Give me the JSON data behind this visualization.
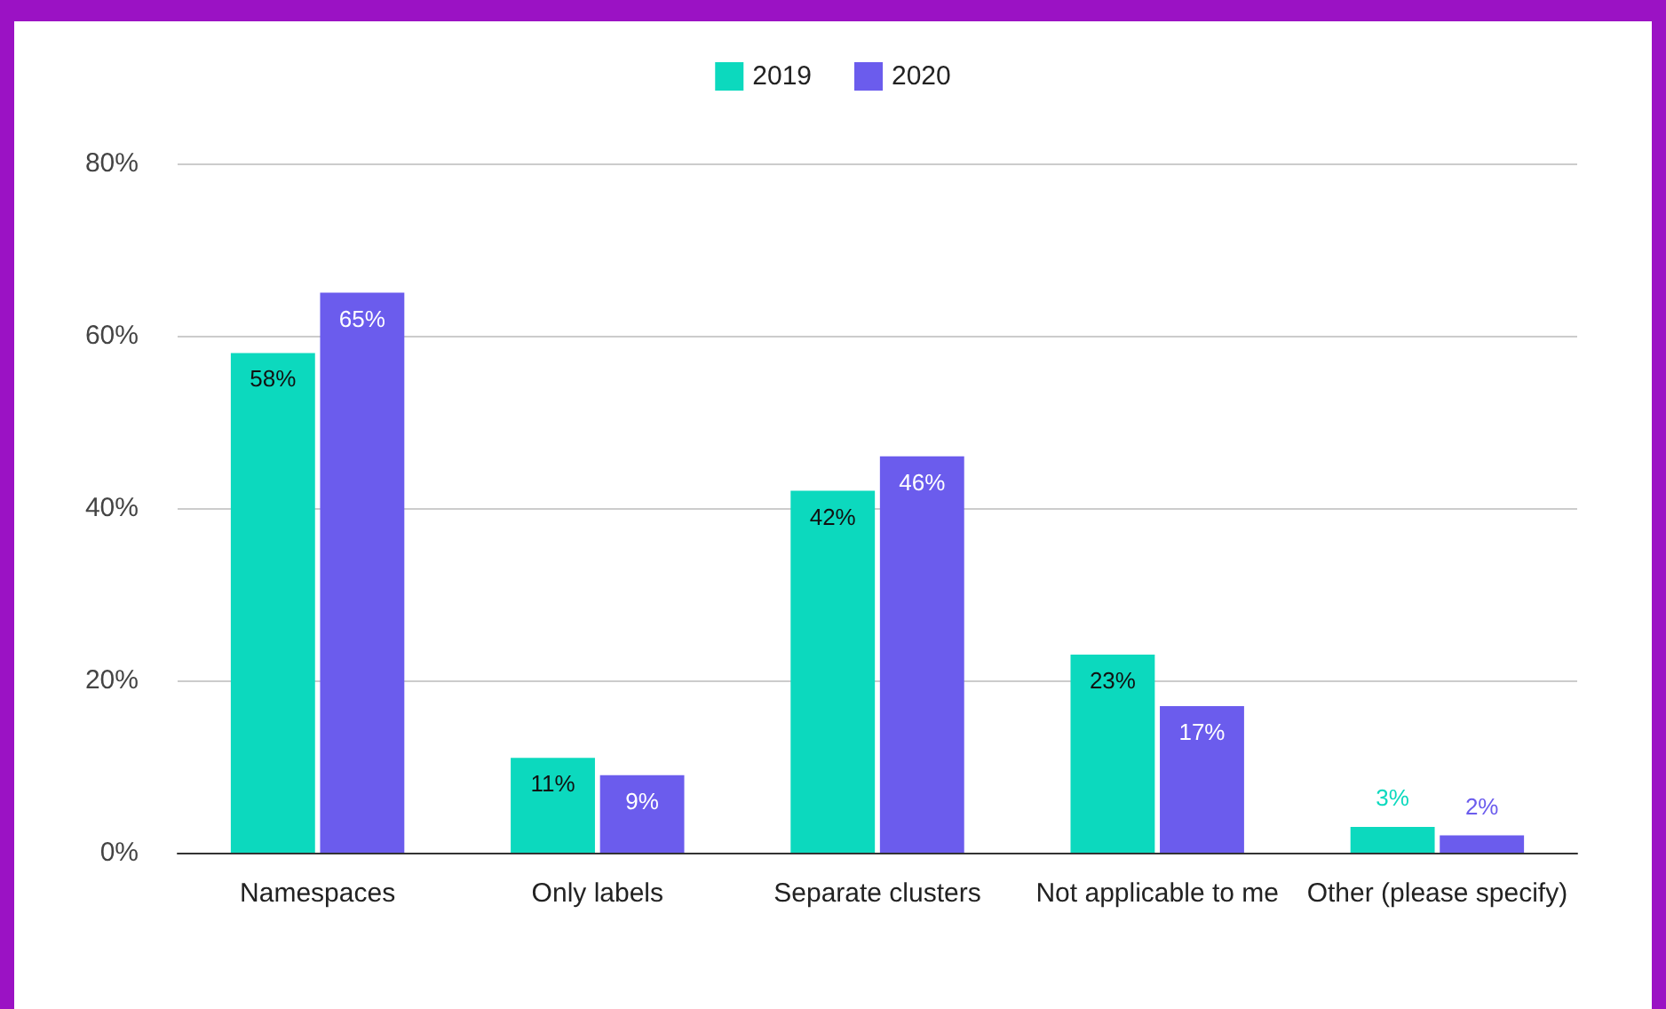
{
  "chart_data": {
    "type": "bar",
    "categories": [
      "Namespaces",
      "Only labels",
      "Separate clusters",
      "Not applicable to me",
      "Other (please specify)"
    ],
    "series": [
      {
        "name": "2019",
        "color": "#0cd9be",
        "values": [
          58,
          11,
          42,
          23,
          3
        ],
        "value_labels": [
          "58%",
          "11%",
          "42%",
          "23%",
          "3%"
        ]
      },
      {
        "name": "2020",
        "color": "#6b5ced",
        "values": [
          65,
          9,
          46,
          17,
          2
        ],
        "value_labels": [
          "65%",
          "9%",
          "46%",
          "17%",
          "2%"
        ]
      }
    ],
    "ylim": [
      0,
      80
    ],
    "yticks": [
      {
        "value": 0,
        "label": "0%"
      },
      {
        "value": 20,
        "label": "20%"
      },
      {
        "value": 40,
        "label": "40%"
      },
      {
        "value": 60,
        "label": "60%"
      },
      {
        "value": 80,
        "label": "80%"
      }
    ],
    "grid": "y",
    "legend": "top"
  }
}
